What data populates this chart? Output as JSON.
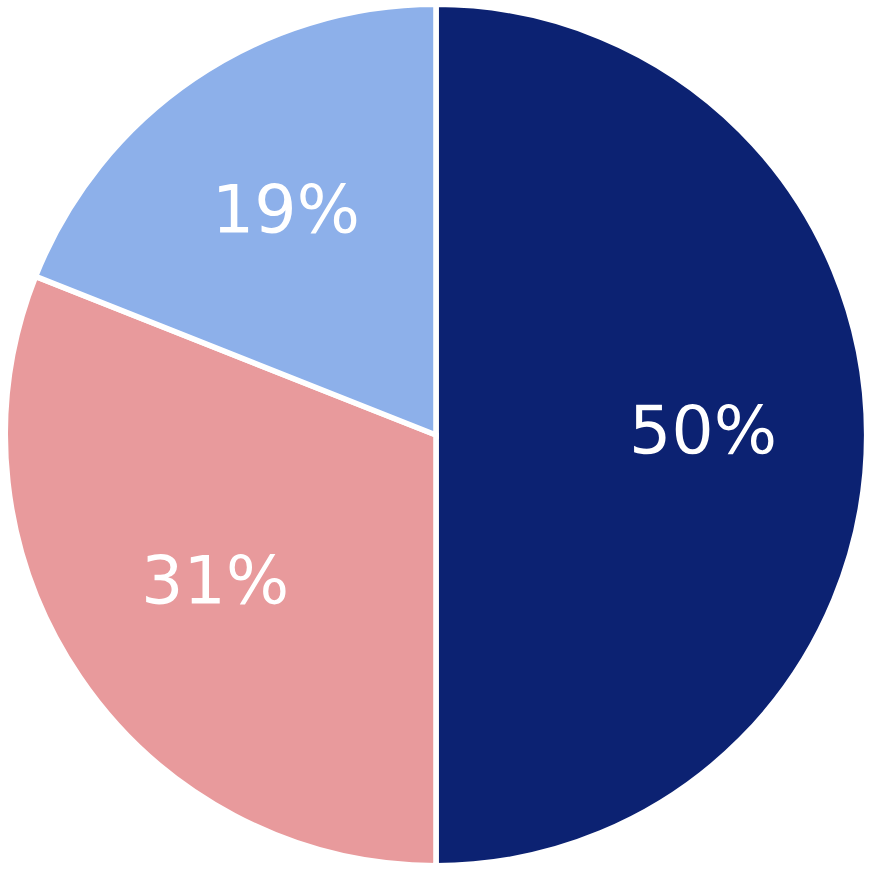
{
  "chart_data": {
    "type": "pie",
    "categories": [
      null,
      null,
      null
    ],
    "values": [
      50,
      31,
      19
    ],
    "colors": [
      "#0c2272",
      "#e89a9c",
      "#8db0ea"
    ],
    "value_labels": [
      "50%",
      "31%",
      "19%"
    ]
  }
}
